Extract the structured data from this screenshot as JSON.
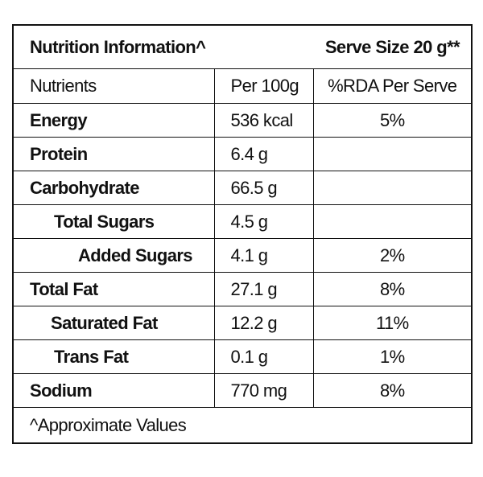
{
  "header": {
    "title": "Nutrition Information^",
    "serve_size": "Serve Size 20 g**"
  },
  "table": {
    "columns": [
      "Nutrients",
      "Per 100g",
      "%RDA Per Serve"
    ],
    "rows": [
      [
        "Energy",
        "536 kcal",
        "5%"
      ],
      [
        "Protein",
        "6.4 g"
      ],
      [
        "Carbohydrate",
        "66.5 g"
      ],
      [
        "Total Sugars",
        "4.5 g"
      ],
      [
        "Added Sugars",
        "4.1 g",
        "2%"
      ],
      [
        "Total Fat",
        "27.1 g",
        "8%"
      ],
      [
        "Saturated Fat",
        "12.2 g",
        "11%"
      ],
      [
        "Trans Fat",
        "0.1 g",
        "1%"
      ],
      [
        "Sodium",
        "770 mg",
        "8%"
      ]
    ]
  },
  "footer": "^Approximate Values"
}
